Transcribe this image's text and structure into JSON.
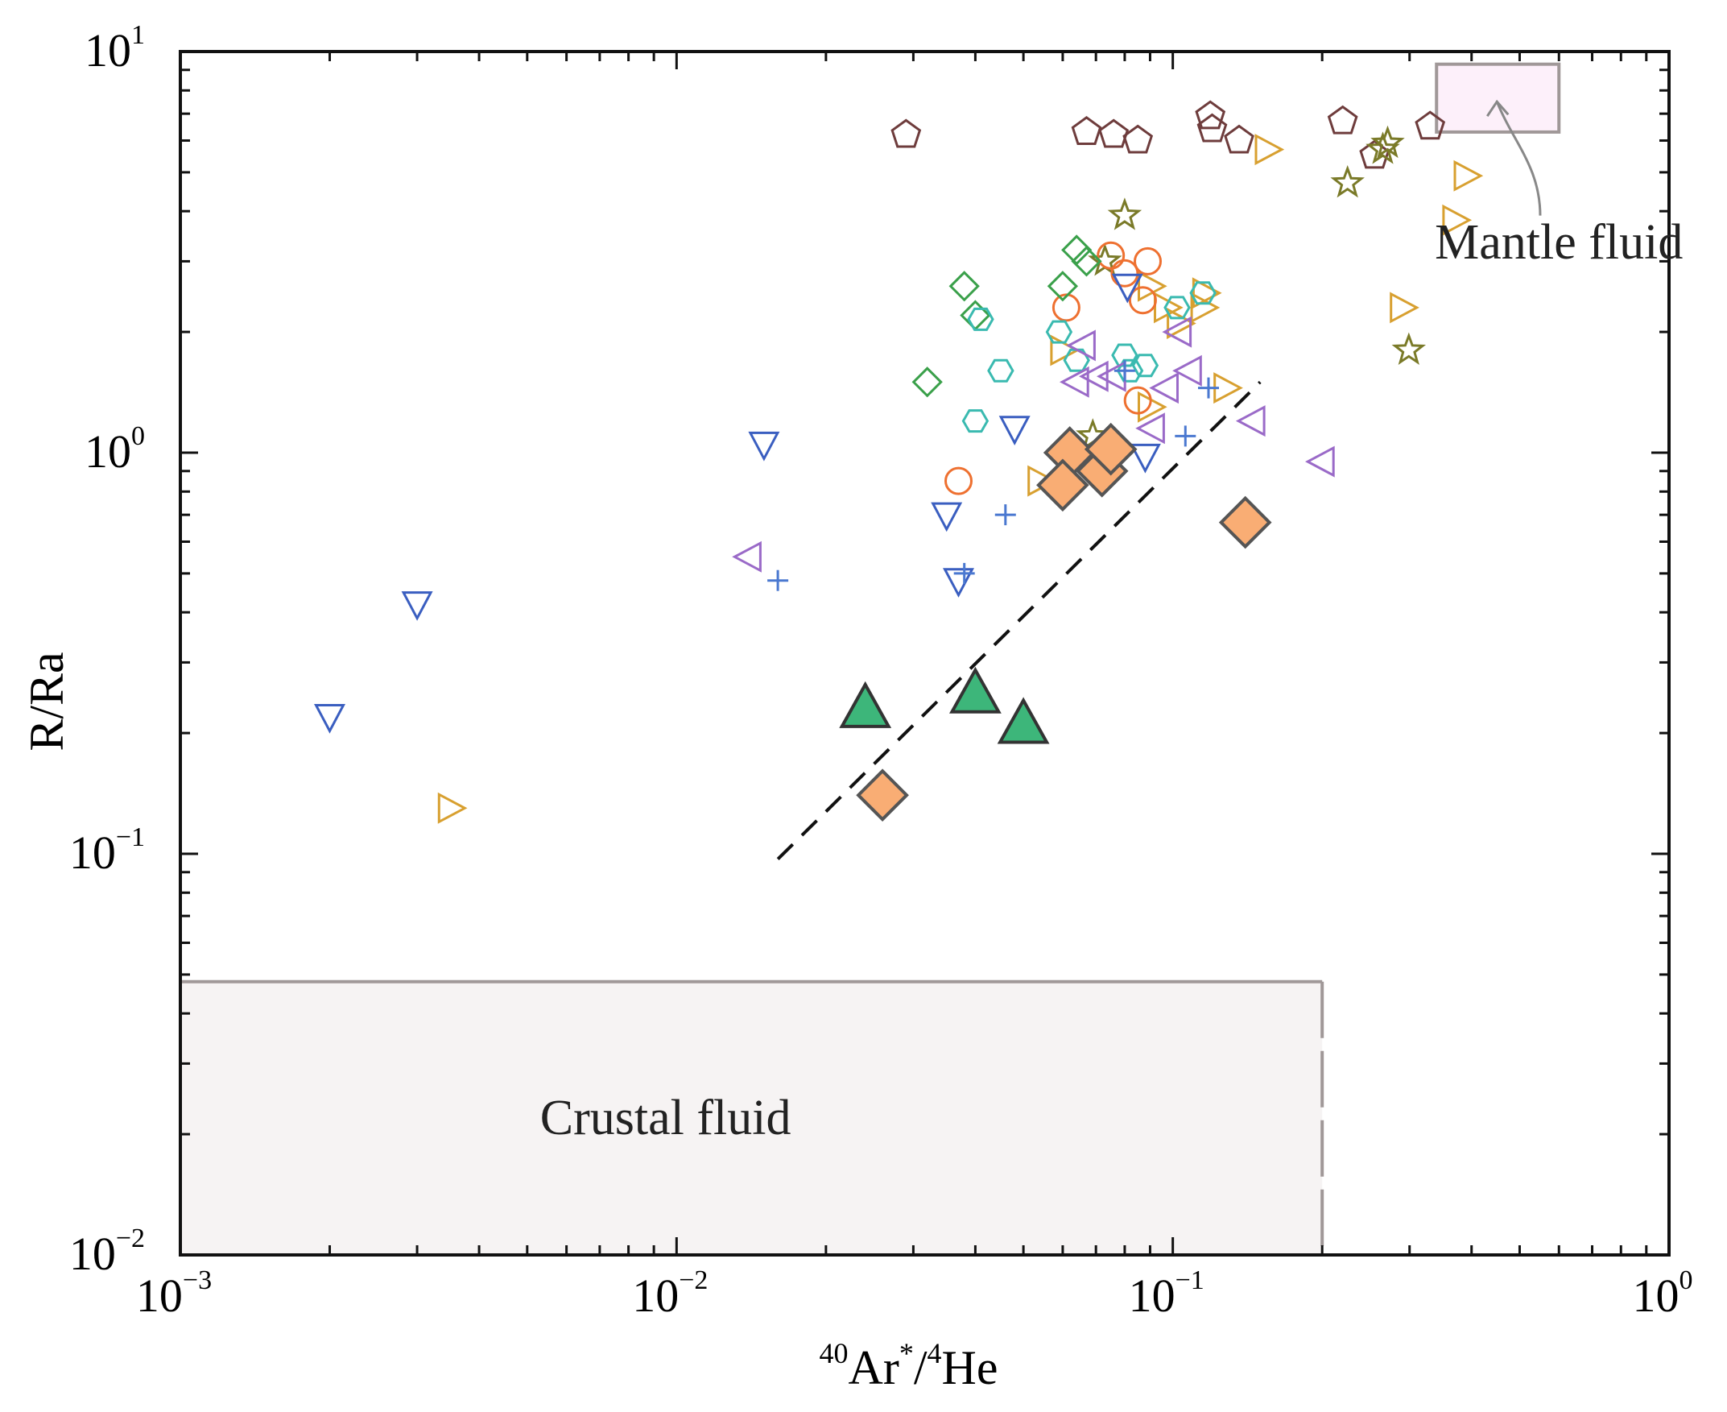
{
  "chart_data": {
    "type": "scatter",
    "title": "",
    "xlabel": {
      "prefix_sup": "40",
      "main1": "Ar",
      "sup1": "*",
      "slash": "/",
      "prefix_sup2": "4",
      "main2": "He"
    },
    "ylabel": "R/Ra",
    "xscale": "log",
    "yscale": "log",
    "xlim": [
      0.001,
      1
    ],
    "ylim": [
      0.01,
      10
    ],
    "xticks": [
      {
        "value": 0.001,
        "base": "10",
        "exp": "−3"
      },
      {
        "value": 0.01,
        "base": "10",
        "exp": "−2"
      },
      {
        "value": 0.1,
        "base": "10",
        "exp": "−1"
      },
      {
        "value": 1,
        "base": "10",
        "exp": "0"
      }
    ],
    "yticks": [
      {
        "value": 0.01,
        "base": "10",
        "exp": "−2"
      },
      {
        "value": 0.1,
        "base": "10",
        "exp": "−1"
      },
      {
        "value": 1,
        "base": "10",
        "exp": "0"
      },
      {
        "value": 10,
        "base": "10",
        "exp": "1"
      }
    ],
    "regions": [
      {
        "name": "crustal-fluid-region",
        "label": "Crustal fluid",
        "x": [
          0.001,
          0.2
        ],
        "y": [
          0.01,
          0.048
        ],
        "fill": "#f6f3f3",
        "stroke": "#a09898",
        "label_at": [
          0.0095,
          0.02
        ]
      },
      {
        "name": "mantle-fluid-region",
        "label": "Mantle fluid",
        "x": [
          0.34,
          0.6
        ],
        "y": [
          6.3,
          9.3
        ],
        "fill": "#fdf0fa",
        "stroke": "#a09898",
        "label_at": [
          0.6,
          3.05
        ]
      }
    ],
    "trend_line": {
      "x": [
        0.016,
        0.15
      ],
      "y": [
        0.097,
        1.5
      ],
      "style": "dashed",
      "color": "#111111"
    },
    "annotation_arrow": {
      "from": [
        0.55,
        3.9
      ],
      "to": [
        0.45,
        7.5
      ],
      "color": "#888888"
    },
    "series": [
      {
        "name": "pentagon",
        "marker": "pentagon",
        "color": "#6e3c3c",
        "filled": false,
        "points": [
          [
            0.029,
            6.2
          ],
          [
            0.067,
            6.3
          ],
          [
            0.076,
            6.2
          ],
          [
            0.085,
            6.0
          ],
          [
            0.119,
            6.9
          ],
          [
            0.12,
            6.4
          ],
          [
            0.136,
            6.0
          ],
          [
            0.22,
            6.7
          ],
          [
            0.255,
            5.5
          ],
          [
            0.33,
            6.5
          ]
        ]
      },
      {
        "name": "right-triangle",
        "marker": "triangle-right",
        "color": "#d8a030",
        "filled": false,
        "points": [
          [
            0.155,
            5.7
          ],
          [
            0.39,
            4.9
          ],
          [
            0.37,
            3.8
          ],
          [
            0.29,
            2.3
          ],
          [
            0.116,
            2.5
          ],
          [
            0.115,
            2.3
          ],
          [
            0.103,
            2.1
          ],
          [
            0.097,
            2.3
          ],
          [
            0.09,
            2.6
          ],
          [
            0.128,
            1.45
          ],
          [
            0.06,
            1.8
          ],
          [
            0.09,
            1.3
          ],
          [
            0.054,
            0.85
          ],
          [
            0.0035,
            0.13
          ]
        ]
      },
      {
        "name": "star",
        "marker": "star",
        "color": "#7a7a28",
        "filled": false,
        "points": [
          [
            0.271,
            5.9
          ],
          [
            0.265,
            5.7
          ],
          [
            0.225,
            4.7
          ],
          [
            0.299,
            1.8
          ],
          [
            0.08,
            3.9
          ],
          [
            0.073,
            3.0
          ],
          [
            0.069,
            1.1
          ]
        ]
      },
      {
        "name": "circle",
        "marker": "circle",
        "color": "#ee7030",
        "filled": false,
        "points": [
          [
            0.075,
            3.1
          ],
          [
            0.08,
            2.8
          ],
          [
            0.089,
            3.0
          ],
          [
            0.087,
            2.4
          ],
          [
            0.061,
            2.3
          ],
          [
            0.085,
            1.35
          ],
          [
            0.037,
            0.85
          ]
        ]
      },
      {
        "name": "diamond",
        "marker": "diamond",
        "color": "#3aa04a",
        "filled": false,
        "points": [
          [
            0.064,
            3.2
          ],
          [
            0.067,
            3.0
          ],
          [
            0.06,
            2.6
          ],
          [
            0.038,
            2.6
          ],
          [
            0.04,
            2.2
          ],
          [
            0.032,
            1.5
          ]
        ]
      },
      {
        "name": "hexagon",
        "marker": "hexagon",
        "color": "#3abab0",
        "filled": false,
        "points": [
          [
            0.102,
            2.3
          ],
          [
            0.115,
            2.5
          ],
          [
            0.041,
            2.15
          ],
          [
            0.059,
            2.0
          ],
          [
            0.064,
            1.7
          ],
          [
            0.08,
            1.75
          ],
          [
            0.082,
            1.6
          ],
          [
            0.088,
            1.65
          ],
          [
            0.045,
            1.6
          ],
          [
            0.04,
            1.2
          ]
        ]
      },
      {
        "name": "down-triangle",
        "marker": "triangle-down",
        "color": "#3a5ec0",
        "filled": false,
        "points": [
          [
            0.081,
            2.6
          ],
          [
            0.015,
            1.05
          ],
          [
            0.048,
            1.15
          ],
          [
            0.088,
            0.98
          ],
          [
            0.035,
            0.7
          ],
          [
            0.037,
            0.48
          ],
          [
            0.003,
            0.42
          ],
          [
            0.002,
            0.22
          ]
        ]
      },
      {
        "name": "left-triangle",
        "marker": "triangle-left",
        "color": "#9a6ac8",
        "filled": false,
        "points": [
          [
            0.066,
            1.85
          ],
          [
            0.103,
            2.0
          ],
          [
            0.07,
            1.55
          ],
          [
            0.064,
            1.5
          ],
          [
            0.097,
            1.45
          ],
          [
            0.108,
            1.6
          ],
          [
            0.076,
            1.55
          ],
          [
            0.091,
            1.15
          ],
          [
            0.145,
            1.2
          ],
          [
            0.2,
            0.95
          ],
          [
            0.014,
            0.55
          ]
        ]
      },
      {
        "name": "plus",
        "marker": "plus",
        "color": "#4a78d0",
        "filled": false,
        "points": [
          [
            0.08,
            1.6
          ],
          [
            0.118,
            1.45
          ],
          [
            0.106,
            1.1
          ],
          [
            0.046,
            0.7
          ],
          [
            0.038,
            0.5
          ],
          [
            0.016,
            0.48
          ]
        ]
      },
      {
        "name": "filled-diamond",
        "marker": "diamond",
        "color": "#555555",
        "fill": "#f9ad74",
        "filled": true,
        "points": [
          [
            0.062,
            1.0
          ],
          [
            0.072,
            0.9
          ],
          [
            0.075,
            1.02
          ],
          [
            0.06,
            0.83
          ],
          [
            0.14,
            0.67
          ],
          [
            0.026,
            0.14
          ]
        ]
      },
      {
        "name": "filled-triangle",
        "marker": "triangle-up",
        "color": "#333333",
        "fill": "#3db67a",
        "filled": true,
        "points": [
          [
            0.024,
            0.23
          ],
          [
            0.04,
            0.25
          ],
          [
            0.05,
            0.21
          ]
        ]
      }
    ]
  }
}
